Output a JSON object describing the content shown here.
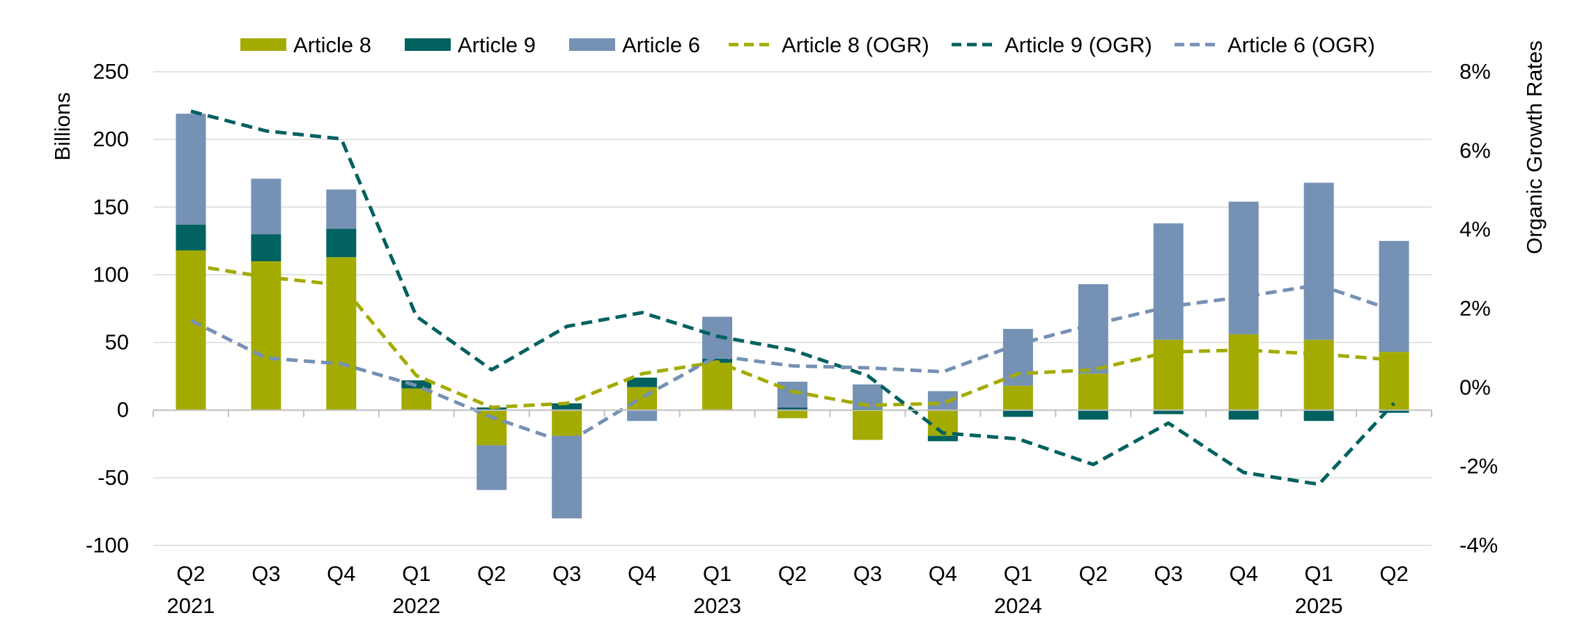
{
  "chart_data": {
    "type": "bar",
    "stacked": true,
    "secondary_axis": true,
    "categories": [
      {
        "quarter": "Q2",
        "year": "2021"
      },
      {
        "quarter": "Q3",
        "year": ""
      },
      {
        "quarter": "Q4",
        "year": ""
      },
      {
        "quarter": "Q1",
        "year": "2022"
      },
      {
        "quarter": "Q2",
        "year": ""
      },
      {
        "quarter": "Q3",
        "year": ""
      },
      {
        "quarter": "Q4",
        "year": ""
      },
      {
        "quarter": "Q1",
        "year": "2023"
      },
      {
        "quarter": "Q2",
        "year": ""
      },
      {
        "quarter": "Q3",
        "year": ""
      },
      {
        "quarter": "Q4",
        "year": ""
      },
      {
        "quarter": "Q1",
        "year": "2024"
      },
      {
        "quarter": "Q2",
        "year": ""
      },
      {
        "quarter": "Q3",
        "year": ""
      },
      {
        "quarter": "Q4",
        "year": ""
      },
      {
        "quarter": "Q1",
        "year": "2025"
      },
      {
        "quarter": "Q2",
        "year": ""
      }
    ],
    "bar_series": [
      {
        "name": "Article 8",
        "color": "#a3ab00",
        "values": [
          118,
          110,
          113,
          16,
          -26,
          -19,
          17,
          35,
          -6,
          -22,
          -19,
          18,
          27,
          52,
          56,
          52,
          43
        ]
      },
      {
        "name": "Article 9",
        "color": "#00615f",
        "values": [
          19,
          20,
          21,
          6,
          2,
          5,
          7,
          3,
          2,
          1,
          -4,
          -5,
          -7,
          -3,
          -7,
          -8,
          -2
        ]
      },
      {
        "name": "Article 6",
        "color": "#7591b4",
        "values": [
          82,
          41,
          29,
          0,
          -33,
          -61,
          -8,
          31,
          19,
          18,
          14,
          42,
          66,
          86,
          98,
          116,
          82
        ]
      }
    ],
    "line_series": [
      {
        "name": "Article 8 (OGR)",
        "color": "#a3ab00",
        "dash": true,
        "values": [
          3.1,
          2.8,
          2.6,
          0.3,
          -0.5,
          -0.4,
          0.35,
          0.65,
          -0.1,
          -0.45,
          -0.4,
          0.35,
          0.45,
          0.9,
          0.95,
          0.85,
          0.7
        ]
      },
      {
        "name": "Article 9 (OGR)",
        "color": "#00615f",
        "dash": true,
        "values": [
          7.0,
          6.5,
          6.3,
          1.8,
          0.45,
          1.55,
          1.9,
          1.3,
          0.95,
          0.3,
          -1.15,
          -1.3,
          -1.95,
          -0.9,
          -2.15,
          -2.45,
          -0.4
        ]
      },
      {
        "name": "Article 6 (OGR)",
        "color": "#7591b4",
        "dash": true,
        "values": [
          1.7,
          0.75,
          0.6,
          0.05,
          -0.75,
          -1.4,
          -0.25,
          0.8,
          0.55,
          0.5,
          0.4,
          1.1,
          1.6,
          2.05,
          2.3,
          2.6,
          1.95
        ]
      }
    ],
    "legend_order": [
      "Article 8",
      "Article 9",
      "Article 6",
      "Article 8 (OGR)",
      "Article 9 (OGR)",
      "Article 6 (OGR)"
    ],
    "legend_position": "top",
    "ylabel": "Billions",
    "ylim": [
      -100,
      250
    ],
    "yticks": [
      -100,
      -50,
      0,
      50,
      100,
      150,
      200,
      250
    ],
    "ytick_labels": [
      "-100",
      "-50",
      "0",
      "50",
      "100",
      "150",
      "200",
      "250"
    ],
    "y2label": "Organic Growth Rates",
    "y2lim": [
      -4,
      8
    ],
    "y2ticks": [
      -4,
      -2,
      0,
      2,
      4,
      6,
      8
    ],
    "y2tick_labels": [
      "-4%",
      "-2%",
      "0%",
      "2%",
      "4%",
      "6%",
      "8%"
    ],
    "grid": true
  }
}
